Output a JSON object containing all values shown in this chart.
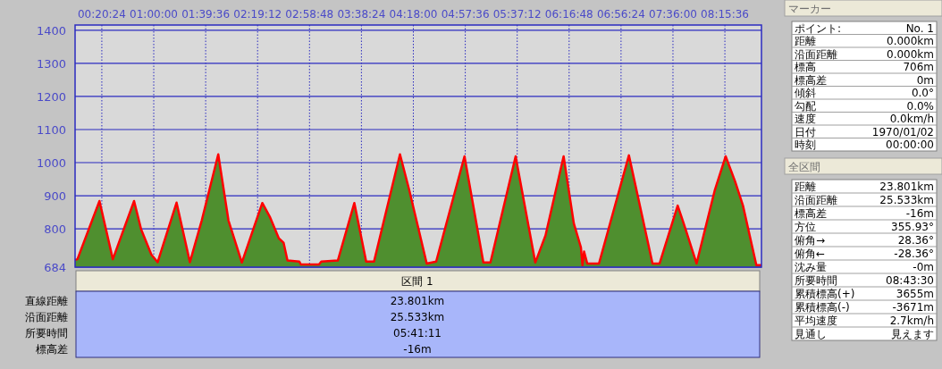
{
  "chart_data": {
    "type": "area",
    "x": [
      0,
      0.03,
      0.31,
      0.48,
      0.75,
      0.84,
      0.97,
      1.05,
      1.29,
      1.46,
      1.61,
      1.82,
      1.95,
      2.12,
      2.38,
      2.48,
      2.59,
      2.65,
      2.7,
      2.85,
      2.87,
      3.1,
      3.13,
      3.34,
      3.55,
      3.7,
      3.8,
      4.13,
      4.25,
      4.47,
      4.59,
      4.95,
      5.19,
      5.28,
      5.6,
      5.85,
      5.98,
      6.21,
      6.34,
      6.43,
      6.45,
      6.47,
      6.51,
      6.66,
      7.04,
      7.34,
      7.43,
      7.66,
      7.73,
      7.9,
      8.13,
      8.27,
      8.39,
      8.49,
      8.66,
      8.725
    ],
    "series": [
      {
        "type": "area",
        "color": "#4f8f2f",
        "values": [
          706,
          708,
          884,
          708,
          884,
          798,
          722,
          699,
          879,
          699,
          825,
          1025,
          825,
          698,
          878,
          834,
          771,
          758,
          704,
          701,
          692,
          692,
          701,
          704,
          878,
          701,
          701,
          1025,
          915,
          695,
          701,
          1019,
          698,
          698,
          1019,
          698,
          780,
          1019,
          816,
          744,
          690,
          731,
          695,
          695,
          1022,
          695,
          695,
          870,
          821,
          695,
          915,
          1019,
          943,
          870,
          690,
          690
        ]
      },
      {
        "type": "line",
        "color": "#ff0000",
        "values": [
          706,
          708,
          884,
          708,
          884,
          798,
          722,
          699,
          879,
          699,
          825,
          1025,
          825,
          698,
          878,
          834,
          771,
          758,
          704,
          701,
          692,
          692,
          701,
          704,
          878,
          701,
          701,
          1025,
          915,
          695,
          701,
          1019,
          698,
          698,
          1019,
          698,
          780,
          1019,
          816,
          744,
          690,
          731,
          695,
          695,
          1022,
          695,
          695,
          870,
          821,
          695,
          915,
          1019,
          943,
          870,
          690,
          690
        ]
      }
    ],
    "xlim": [
      0,
      8.725
    ],
    "xticks": [
      {
        "value": 0.34,
        "label": "00:20:24"
      },
      {
        "value": 1.0,
        "label": "01:00:00"
      },
      {
        "value": 1.66,
        "label": "01:39:36"
      },
      {
        "value": 2.32,
        "label": "02:19:12"
      },
      {
        "value": 2.98,
        "label": "02:58:48"
      },
      {
        "value": 3.64,
        "label": "03:38:24"
      },
      {
        "value": 4.3,
        "label": "04:18:00"
      },
      {
        "value": 4.96,
        "label": "04:57:36"
      },
      {
        "value": 5.62,
        "label": "05:37:12"
      },
      {
        "value": 6.28,
        "label": "06:16:48"
      },
      {
        "value": 6.94,
        "label": "06:56:24"
      },
      {
        "value": 7.6,
        "label": "07:36:00"
      },
      {
        "value": 8.26,
        "label": "08:15:36"
      }
    ],
    "ylim": [
      684,
      1416
    ],
    "yticks": [
      684,
      800,
      900,
      1000,
      1100,
      1200,
      1300,
      1400
    ],
    "grid": true,
    "annotations": [
      "区間 1",
      "直線距離",
      "23.801km",
      "沿面距離",
      "25.533km",
      "所要時間",
      "05:41:11",
      "標高差",
      "-16m",
      "マーカー",
      "ポイント:",
      "No. 1",
      "距離",
      "0.000km",
      "沿面距離",
      "0.000km",
      "標高",
      "706m",
      "標高差",
      "0m",
      "傾斜",
      "0.0°",
      "勾配",
      "0.0%",
      "速度",
      "0.0km/h",
      "日付",
      "1970/01/02",
      "時刻",
      "00:00:00",
      "全区間",
      "距離",
      "23.801km",
      "沿面距離",
      "25.533km",
      "標高差",
      "-16m",
      "方位",
      "355.93°",
      "俯角→",
      "28.36°",
      "俯角←",
      "-28.36°",
      "沈み量",
      "-0m",
      "所要時間",
      "08:43:30",
      "累積標高(+)",
      "3655m",
      "累積標高(-)",
      "-3671m",
      "平均速度",
      "2.7km/h",
      "見通し",
      "見えます"
    ]
  }
}
